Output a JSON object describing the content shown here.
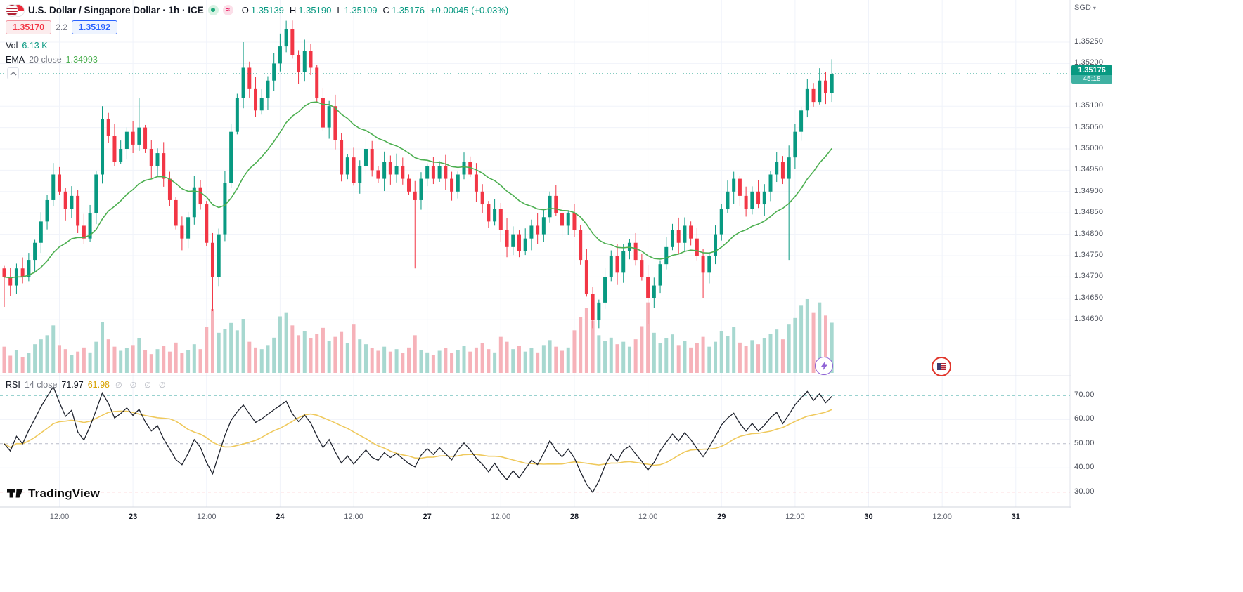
{
  "header": {
    "symbol_title": "U.S. Dollar / Singapore Dollar · 1h · ICE",
    "ohlc": {
      "o_label": "O",
      "o": "1.35139",
      "h_label": "H",
      "h": "1.35190",
      "l_label": "L",
      "l": "1.35109",
      "c_label": "C",
      "c": "1.35176",
      "change": "+0.00045 (+0.03%)"
    },
    "sell_price": "1.35170",
    "spread": "2.2",
    "buy_price": "1.35192",
    "vol_label": "Vol",
    "vol_value": "6.13 K",
    "ema_label": "EMA",
    "ema_params": "20 close",
    "ema_value": "1.34993"
  },
  "rsi_legend": {
    "name": "RSI",
    "params": "14 close",
    "value": "71.97",
    "ma_value": "61.98",
    "placeholders": "∅ ∅ ∅ ∅"
  },
  "price_scale": {
    "currency": "SGD",
    "last_price": "1.35176",
    "countdown": "45:18"
  },
  "watermark": {
    "brand": "TradingView"
  },
  "colors": {
    "up": "#089981",
    "down": "#f23645",
    "vol_up": "#a7d8d0",
    "vol_down": "#f6b2b9",
    "ema": "#4caf50",
    "rsi": "#1e222d",
    "rsi_ma": "#efc95c",
    "band70": "#33a69f",
    "band50": "#b8bcc9",
    "band30": "#f4737f",
    "grid": "#f0f3fa",
    "tag_bg": "#089981"
  },
  "chart_data": {
    "type": "candlestick",
    "title": "U.S. Dollar / Singapore Dollar, 1h, ICE",
    "x_unit": "1 candle = 1 hour",
    "price_range_visible": [
      1.346,
      1.3525
    ],
    "open_rule": "each candle opens at the previous close; first open 1.3472",
    "closes": [
      1.347,
      1.3468,
      1.3472,
      1.347,
      1.3474,
      1.3478,
      1.3483,
      1.3488,
      1.3494,
      1.349,
      1.3486,
      1.3489,
      1.3482,
      1.3479,
      1.3485,
      1.3494,
      1.3507,
      1.3503,
      1.3497,
      1.35,
      1.3504,
      1.3501,
      1.3505,
      1.35,
      1.3496,
      1.3499,
      1.3493,
      1.3488,
      1.3482,
      1.3479,
      1.3484,
      1.3491,
      1.3487,
      1.3478,
      1.347,
      1.348,
      1.3492,
      1.3504,
      1.3512,
      1.3519,
      1.3514,
      1.3509,
      1.3512,
      1.3516,
      1.352,
      1.3524,
      1.3528,
      1.3522,
      1.3518,
      1.3523,
      1.3519,
      1.3512,
      1.3505,
      1.351,
      1.3502,
      1.3494,
      1.3498,
      1.3492,
      1.3496,
      1.35,
      1.3495,
      1.3493,
      1.3497,
      1.3494,
      1.3496,
      1.3493,
      1.349,
      1.3488,
      1.3493,
      1.3496,
      1.3493,
      1.3496,
      1.3493,
      1.349,
      1.3494,
      1.3497,
      1.3494,
      1.349,
      1.3487,
      1.3483,
      1.3486,
      1.3481,
      1.3477,
      1.348,
      1.3476,
      1.3479,
      1.3482,
      1.348,
      1.3484,
      1.3489,
      1.3485,
      1.3482,
      1.3485,
      1.3481,
      1.3474,
      1.3466,
      1.346,
      1.3464,
      1.347,
      1.3475,
      1.3471,
      1.3476,
      1.3478,
      1.3474,
      1.347,
      1.3465,
      1.3468,
      1.3473,
      1.3477,
      1.3481,
      1.3478,
      1.3482,
      1.3479,
      1.3475,
      1.3471,
      1.3475,
      1.348,
      1.3486,
      1.349,
      1.3493,
      1.3489,
      1.3486,
      1.349,
      1.3487,
      1.349,
      1.3494,
      1.3497,
      1.3493,
      1.3498,
      1.3504,
      1.3509,
      1.3514,
      1.3511,
      1.3516,
      1.3513,
      1.35176
    ],
    "volumes_k": [
      3.2,
      2.1,
      2.8,
      1.9,
      2.4,
      3.5,
      4.1,
      4.6,
      5.8,
      3.4,
      2.9,
      2.2,
      2.6,
      3.1,
      2.5,
      3.8,
      6.2,
      4.1,
      3.2,
      2.7,
      3.0,
      3.4,
      4.2,
      2.8,
      2.3,
      2.9,
      3.3,
      2.6,
      3.7,
      2.4,
      2.8,
      3.5,
      2.9,
      5.6,
      7.8,
      4.9,
      5.4,
      6.1,
      5.2,
      6.6,
      3.8,
      3.1,
      2.9,
      3.4,
      4.3,
      6.9,
      7.4,
      5.8,
      4.6,
      5.1,
      4.2,
      4.8,
      5.5,
      3.9,
      4.4,
      5.0,
      3.6,
      5.9,
      4.1,
      3.5,
      3.0,
      2.7,
      3.2,
      2.6,
      2.9,
      2.4,
      3.1,
      4.6,
      2.8,
      2.5,
      2.2,
      2.7,
      3.0,
      2.4,
      2.8,
      3.3,
      2.6,
      3.1,
      3.6,
      2.9,
      2.5,
      4.4,
      3.8,
      2.9,
      3.3,
      2.6,
      3.0,
      2.5,
      3.4,
      4.0,
      3.2,
      2.7,
      3.1,
      5.2,
      6.8,
      7.9,
      6.4,
      4.6,
      3.9,
      4.3,
      3.5,
      3.8,
      3.2,
      4.1,
      5.7,
      8.6,
      4.9,
      3.6,
      4.2,
      4.7,
      3.4,
      3.9,
      3.1,
      3.6,
      4.4,
      3.2,
      3.8,
      5.1,
      4.5,
      5.6,
      3.7,
      3.3,
      4.0,
      3.5,
      4.2,
      4.8,
      5.3,
      4.1,
      5.9,
      6.7,
      8.2,
      9.0,
      7.4,
      8.6,
      7.0,
      6.13
    ],
    "wick_overrides": {
      "0": {
        "low": 1.3463
      },
      "16": {
        "high": 1.351
      },
      "22": {
        "high": 1.3512
      },
      "34": {
        "low": 1.3462
      },
      "39": {
        "high": 1.3525
      },
      "45": {
        "high": 1.3527
      },
      "46": {
        "high": 1.353
      },
      "67": {
        "low": 1.3472
      },
      "96": {
        "low": 1.3458
      },
      "105": {
        "low": 1.3459
      },
      "114": {
        "low": 1.3465
      },
      "128": {
        "low": 1.3474
      },
      "135": {
        "high": 1.3521
      }
    },
    "overlays": [
      {
        "name": "EMA 20 close",
        "type": "ema",
        "period": 20,
        "last_value": 1.34993
      }
    ],
    "indicators": [
      {
        "name": "RSI 14 close",
        "type": "rsi",
        "period": 14,
        "last_value": 71.97,
        "ma_last_value": 61.98,
        "levels": [
          70,
          50,
          30
        ]
      }
    ],
    "price_ticks": [
      "1.35250",
      "1.35200",
      "1.35100",
      "1.35050",
      "1.35000",
      "1.34950",
      "1.34900",
      "1.34850",
      "1.34800",
      "1.34750",
      "1.34700",
      "1.34650",
      "1.34600"
    ],
    "rsi_ticks": [
      "70.00",
      "60.00",
      "50.00",
      "40.00",
      "30.00"
    ],
    "time_ticks": [
      {
        "label": "12:00",
        "i": 9
      },
      {
        "label": "23",
        "i": 21,
        "major": true
      },
      {
        "label": "12:00",
        "i": 33
      },
      {
        "label": "24",
        "i": 45,
        "major": true
      },
      {
        "label": "12:00",
        "i": 57
      },
      {
        "label": "27",
        "i": 69,
        "major": true
      },
      {
        "label": "12:00",
        "i": 81
      },
      {
        "label": "28",
        "i": 93,
        "major": true
      },
      {
        "label": "12:00",
        "i": 105
      },
      {
        "label": "29",
        "i": 117,
        "major": true
      },
      {
        "label": "12:00",
        "i": 129
      },
      {
        "label": "30",
        "i": 141,
        "major": true
      },
      {
        "label": "12:00",
        "i": 153
      },
      {
        "label": "31",
        "i": 165,
        "major": true
      }
    ]
  }
}
